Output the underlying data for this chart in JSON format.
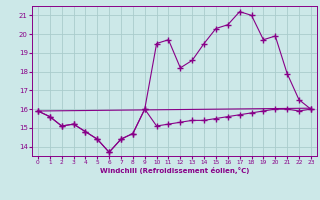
{
  "xlabel": "Windchill (Refroidissement éolien,°C)",
  "background_color": "#cce8e8",
  "grid_color": "#aacccc",
  "line_color": "#880088",
  "xlim": [
    -0.5,
    23.5
  ],
  "ylim": [
    13.5,
    21.5
  ],
  "yticks": [
    14,
    15,
    16,
    17,
    18,
    19,
    20,
    21
  ],
  "xticks": [
    0,
    1,
    2,
    3,
    4,
    5,
    6,
    7,
    8,
    9,
    10,
    11,
    12,
    13,
    14,
    15,
    16,
    17,
    18,
    19,
    20,
    21,
    22,
    23
  ],
  "line1_x": [
    0,
    1,
    2,
    3,
    4,
    5,
    6,
    7,
    8,
    9,
    10,
    11,
    12,
    13,
    14,
    15,
    16,
    17,
    18,
    19,
    20,
    21,
    22,
    23
  ],
  "line1_y": [
    15.9,
    15.6,
    15.1,
    15.2,
    14.8,
    14.4,
    13.7,
    14.4,
    14.7,
    16.0,
    15.1,
    15.2,
    15.3,
    15.4,
    15.4,
    15.5,
    15.6,
    15.7,
    15.8,
    15.9,
    16.0,
    16.0,
    15.9,
    16.0
  ],
  "line2_x": [
    0,
    1,
    2,
    3,
    4,
    5,
    6,
    7,
    8,
    9,
    10,
    11,
    12,
    13,
    14,
    15,
    16,
    17,
    18,
    19,
    20,
    21,
    22,
    23
  ],
  "line2_y": [
    15.9,
    15.6,
    15.1,
    15.2,
    14.8,
    14.4,
    13.7,
    14.4,
    14.7,
    16.0,
    19.5,
    19.7,
    18.2,
    18.6,
    19.5,
    20.3,
    20.5,
    21.2,
    21.0,
    19.7,
    19.9,
    17.9,
    16.5,
    16.0
  ],
  "line3_x": [
    0,
    23
  ],
  "line3_y": [
    15.9,
    16.05
  ]
}
